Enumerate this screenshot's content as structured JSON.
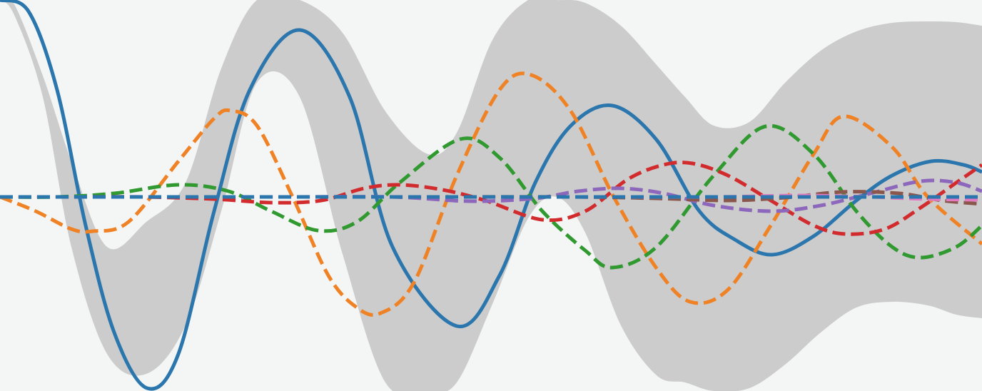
{
  "chart_data": {
    "type": "line",
    "title": "",
    "xlabel": "",
    "ylabel": "",
    "xlim": [
      0,
      13.76
    ],
    "ylim": [
      -2.72,
      2.76
    ],
    "grid": false,
    "legend": "none",
    "colors": {
      "background": "#f4f5f5",
      "band": "#cccccc",
      "blue": "#2a76ad",
      "orange": "#f08226",
      "green": "#30992f",
      "red": "#d22b2e",
      "purple": "#8c67bb",
      "brown": "#8b564b",
      "pink": "#e37ac2"
    },
    "band": {
      "x": [
        0,
        0.2,
        0.6,
        1.0,
        1.5,
        2.05,
        2.6,
        3.1,
        3.6,
        4.2,
        4.8,
        5.4,
        6.0,
        6.4,
        6.9,
        7.4,
        7.8,
        8.2,
        8.7,
        9.2,
        9.6,
        10.0,
        10.5,
        11.0,
        11.5,
        12.0,
        12.5,
        13.0,
        13.4,
        13.76
      ],
      "upper": [
        2.76,
        2.7,
        1.7,
        0.5,
        -0.7,
        -0.35,
        0.2,
        1.8,
        2.76,
        2.76,
        2.3,
        1.2,
        0.6,
        0.9,
        2.2,
        2.76,
        2.76,
        2.72,
        2.4,
        1.85,
        1.4,
        1.0,
        1.05,
        1.6,
        2.05,
        2.32,
        2.44,
        2.46,
        2.45,
        2.4
      ],
      "lower": [
        2.76,
        2.55,
        1.4,
        -0.7,
        -2.2,
        -2.48,
        -1.8,
        -0.2,
        1.6,
        1.4,
        -0.8,
        -2.6,
        -2.72,
        -2.6,
        -1.5,
        -0.3,
        0.0,
        -0.5,
        -1.8,
        -2.5,
        -2.6,
        -2.72,
        -2.68,
        -2.35,
        -1.9,
        -1.55,
        -1.47,
        -1.52,
        -1.65,
        -1.7
      ]
    },
    "series": [
      {
        "style": "solid",
        "color": "blue",
        "x": [
          0,
          0.4,
          0.8,
          1.2,
          1.6,
          2.06,
          2.5,
          3.0,
          3.5,
          4.2,
          4.9,
          5.5,
          6.4,
          7.0,
          7.5,
          8.0,
          8.58,
          9.2,
          9.8,
          10.3,
          10.82,
          11.4,
          12.0,
          12.5,
          13.05,
          13.5,
          13.76
        ],
        "y": [
          2.76,
          2.6,
          1.5,
          -0.4,
          -1.9,
          -2.68,
          -2.2,
          -0.2,
          1.5,
          2.34,
          1.4,
          -0.7,
          -1.81,
          -1.1,
          0.2,
          1.0,
          1.28,
          0.8,
          -0.2,
          -0.6,
          -0.81,
          -0.55,
          -0.05,
          0.3,
          0.5,
          0.45,
          0.35
        ]
      },
      {
        "style": "dashed",
        "color": "orange",
        "x": [
          0,
          0.5,
          1.0,
          1.3,
          1.8,
          2.5,
          3.0,
          3.23,
          3.6,
          4.1,
          4.6,
          5.0,
          5.33,
          5.8,
          6.4,
          7.0,
          7.44,
          8.0,
          8.6,
          9.2,
          9.67,
          10.2,
          10.8,
          11.4,
          11.82,
          12.5,
          13.0,
          13.76
        ],
        "y": [
          0.0,
          -0.2,
          -0.45,
          -0.48,
          -0.35,
          0.5,
          1.1,
          1.21,
          1.0,
          0.0,
          -1.1,
          -1.55,
          -1.63,
          -1.2,
          0.3,
          1.5,
          1.71,
          1.2,
          0.0,
          -1.0,
          -1.47,
          -1.3,
          -0.4,
          0.6,
          1.13,
          0.7,
          0.0,
          -0.66
        ]
      },
      {
        "style": "dashed",
        "color": "green",
        "x": [
          0,
          0.8,
          1.6,
          2.5,
          3.2,
          3.8,
          4.45,
          5.0,
          5.6,
          6.45,
          7.0,
          7.6,
          8.2,
          8.58,
          9.2,
          10.0,
          10.73,
          11.4,
          12.0,
          12.5,
          12.9,
          13.4,
          13.76
        ],
        "y": [
          0.0,
          0.0,
          0.05,
          0.17,
          0.08,
          -0.2,
          -0.47,
          -0.35,
          0.2,
          0.81,
          0.55,
          -0.2,
          -0.75,
          -0.99,
          -0.7,
          0.3,
          0.99,
          0.6,
          -0.2,
          -0.7,
          -0.85,
          -0.7,
          -0.4
        ]
      },
      {
        "style": "dashed",
        "color": "red",
        "x": [
          0,
          1.0,
          2.0,
          3.0,
          3.8,
          4.5,
          5.1,
          5.6,
          6.2,
          6.8,
          7.6,
          8.2,
          8.8,
          9.3,
          9.7,
          10.2,
          10.8,
          11.4,
          11.85,
          12.4,
          12.9,
          13.4,
          13.76
        ],
        "y": [
          0.0,
          0.0,
          0.0,
          -0.03,
          -0.08,
          -0.05,
          0.12,
          0.17,
          0.1,
          -0.05,
          -0.32,
          -0.2,
          0.25,
          0.45,
          0.47,
          0.3,
          -0.05,
          -0.4,
          -0.52,
          -0.45,
          -0.15,
          0.2,
          0.45
        ]
      },
      {
        "style": "dashed",
        "color": "purple",
        "x": [
          0,
          2.0,
          4.0,
          5.5,
          6.6,
          7.5,
          8.1,
          8.7,
          9.3,
          10.0,
          10.8,
          11.5,
          12.2,
          12.9,
          13.4,
          13.76
        ],
        "y": [
          0.0,
          0.0,
          0.0,
          0.0,
          -0.06,
          -0.02,
          0.08,
          0.12,
          0.05,
          -0.12,
          -0.2,
          -0.12,
          0.05,
          0.22,
          0.2,
          0.08
        ]
      },
      {
        "style": "dashed",
        "color": "brown",
        "x": [
          0,
          3.0,
          6.0,
          8.0,
          9.2,
          10.2,
          11.0,
          11.8,
          12.6,
          13.2,
          13.76
        ],
        "y": [
          0.0,
          0.0,
          0.0,
          0.0,
          -0.02,
          -0.05,
          -0.01,
          0.07,
          0.05,
          -0.05,
          -0.1
        ]
      },
      {
        "style": "dashed",
        "color": "pink",
        "x": [
          0,
          4.0,
          8.0,
          10.0,
          11.2,
          12.2,
          13.0,
          13.76
        ],
        "y": [
          0.0,
          0.0,
          0.0,
          0.0,
          0.02,
          0.0,
          -0.03,
          -0.04
        ]
      },
      {
        "style": "dashed",
        "color": "blue",
        "x": [
          0,
          13.76
        ],
        "y": [
          0.0,
          0.0
        ]
      }
    ]
  }
}
